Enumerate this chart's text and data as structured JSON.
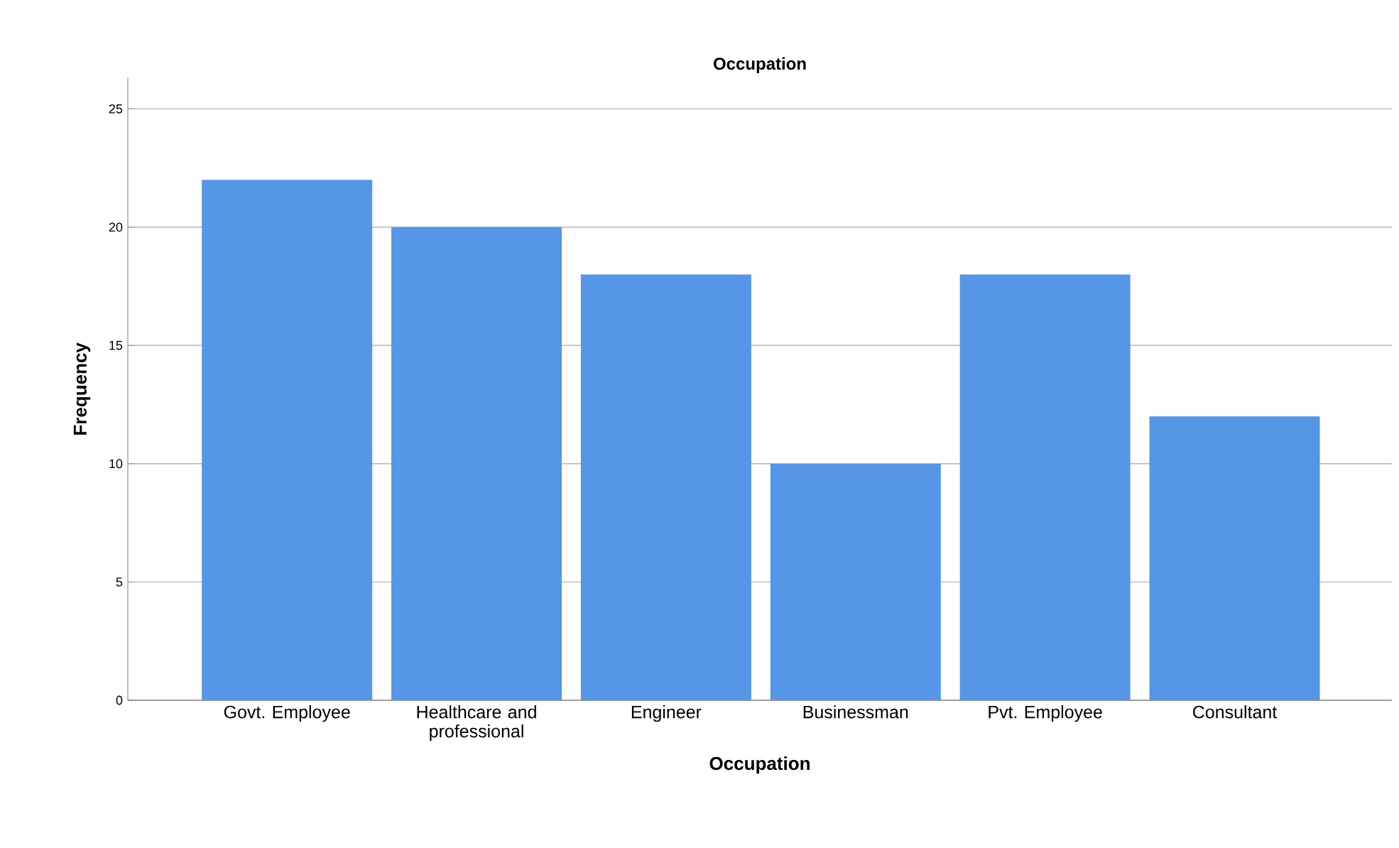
{
  "chart_data": {
    "type": "bar",
    "title": "Occupation",
    "xlabel": "Occupation",
    "ylabel": "Frequency",
    "categories": [
      "Govt. Employee",
      "Healthcare and professional",
      "Engineer",
      "Businessman",
      "Pvt. Employee",
      "Consultant"
    ],
    "values": [
      22,
      20,
      18,
      10,
      18,
      12
    ],
    "color": "#5596e6",
    "ylim": [
      0,
      26.3
    ],
    "yticks": [
      0,
      5,
      10,
      15,
      20,
      25
    ],
    "grid": "y"
  }
}
